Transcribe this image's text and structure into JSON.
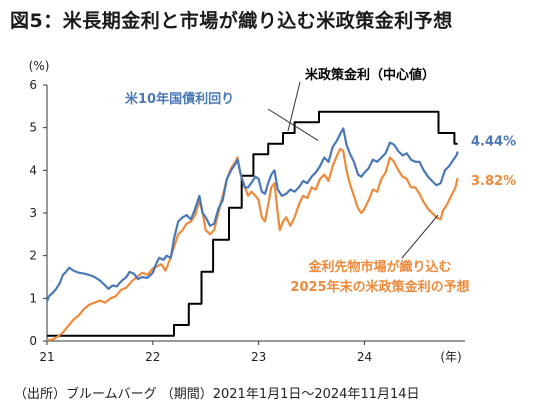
{
  "title": "図5：米長期金利と市場が織り込む米政策金利予想",
  "source": "（出所）ブルームバーグ （期間）2021年1月1日～2024年11月14日",
  "colors": {
    "treasury": "#4a78b7",
    "market": "#ee8a3a",
    "policy": "#000000"
  },
  "chart_data": {
    "type": "line",
    "title": "図5：米長期金利と市場が織り込む米政策金利予想",
    "ylabel": "(%)",
    "xlabel": "(年)",
    "ylim": [
      0,
      6
    ],
    "xlim": [
      2021.0,
      2024.95
    ],
    "y_ticks": [
      "0",
      "1",
      "2",
      "3",
      "4",
      "5",
      "6"
    ],
    "x_ticks": [
      {
        "label": "21",
        "value": 2021.0
      },
      {
        "label": "22",
        "value": 2022.0
      },
      {
        "label": "23",
        "value": 2023.0
      },
      {
        "label": "24",
        "value": 2024.0
      }
    ],
    "grid": false,
    "series": [
      {
        "name": "米10年国債利回り",
        "color": "#4a78b7",
        "end_label": "4.44%",
        "points": [
          [
            2021.0,
            0.93
          ],
          [
            2021.02,
            1.05
          ],
          [
            2021.05,
            1.12
          ],
          [
            2021.08,
            1.2
          ],
          [
            2021.12,
            1.35
          ],
          [
            2021.15,
            1.55
          ],
          [
            2021.18,
            1.62
          ],
          [
            2021.21,
            1.72
          ],
          [
            2021.25,
            1.65
          ],
          [
            2021.3,
            1.6
          ],
          [
            2021.35,
            1.58
          ],
          [
            2021.4,
            1.55
          ],
          [
            2021.45,
            1.5
          ],
          [
            2021.5,
            1.42
          ],
          [
            2021.55,
            1.3
          ],
          [
            2021.58,
            1.22
          ],
          [
            2021.62,
            1.3
          ],
          [
            2021.66,
            1.28
          ],
          [
            2021.7,
            1.4
          ],
          [
            2021.75,
            1.5
          ],
          [
            2021.78,
            1.62
          ],
          [
            2021.82,
            1.58
          ],
          [
            2021.86,
            1.45
          ],
          [
            2021.9,
            1.5
          ],
          [
            2021.95,
            1.48
          ],
          [
            2022.0,
            1.6
          ],
          [
            2022.03,
            1.8
          ],
          [
            2022.06,
            1.95
          ],
          [
            2022.1,
            1.9
          ],
          [
            2022.13,
            2.0
          ],
          [
            2022.17,
            1.95
          ],
          [
            2022.2,
            2.4
          ],
          [
            2022.24,
            2.8
          ],
          [
            2022.28,
            2.9
          ],
          [
            2022.32,
            2.95
          ],
          [
            2022.36,
            2.85
          ],
          [
            2022.4,
            3.1
          ],
          [
            2022.44,
            3.4
          ],
          [
            2022.47,
            3.0
          ],
          [
            2022.5,
            2.9
          ],
          [
            2022.54,
            2.7
          ],
          [
            2022.58,
            2.75
          ],
          [
            2022.62,
            3.1
          ],
          [
            2022.66,
            3.3
          ],
          [
            2022.7,
            3.8
          ],
          [
            2022.74,
            4.0
          ],
          [
            2022.78,
            4.15
          ],
          [
            2022.8,
            4.25
          ],
          [
            2022.83,
            3.9
          ],
          [
            2022.87,
            3.6
          ],
          [
            2022.9,
            3.6
          ],
          [
            2022.93,
            3.7
          ],
          [
            2022.97,
            3.85
          ],
          [
            2023.0,
            3.8
          ],
          [
            2023.03,
            3.5
          ],
          [
            2023.06,
            3.45
          ],
          [
            2023.09,
            3.7
          ],
          [
            2023.12,
            3.9
          ],
          [
            2023.15,
            4.0
          ],
          [
            2023.18,
            3.55
          ],
          [
            2023.22,
            3.4
          ],
          [
            2023.26,
            3.45
          ],
          [
            2023.3,
            3.55
          ],
          [
            2023.34,
            3.5
          ],
          [
            2023.38,
            3.6
          ],
          [
            2023.42,
            3.75
          ],
          [
            2023.46,
            3.7
          ],
          [
            2023.5,
            3.85
          ],
          [
            2023.54,
            3.95
          ],
          [
            2023.58,
            4.1
          ],
          [
            2023.62,
            4.3
          ],
          [
            2023.66,
            4.2
          ],
          [
            2023.7,
            4.55
          ],
          [
            2023.74,
            4.7
          ],
          [
            2023.77,
            4.85
          ],
          [
            2023.8,
            4.98
          ],
          [
            2023.83,
            4.6
          ],
          [
            2023.86,
            4.4
          ],
          [
            2023.9,
            4.2
          ],
          [
            2023.94,
            3.9
          ],
          [
            2023.97,
            3.85
          ],
          [
            2024.0,
            3.95
          ],
          [
            2024.04,
            4.05
          ],
          [
            2024.08,
            4.25
          ],
          [
            2024.12,
            4.2
          ],
          [
            2024.16,
            4.3
          ],
          [
            2024.2,
            4.4
          ],
          [
            2024.24,
            4.65
          ],
          [
            2024.28,
            4.6
          ],
          [
            2024.32,
            4.45
          ],
          [
            2024.36,
            4.35
          ],
          [
            2024.4,
            4.4
          ],
          [
            2024.44,
            4.25
          ],
          [
            2024.48,
            4.2
          ],
          [
            2024.52,
            4.2
          ],
          [
            2024.56,
            4.0
          ],
          [
            2024.6,
            3.85
          ],
          [
            2024.64,
            3.75
          ],
          [
            2024.68,
            3.65
          ],
          [
            2024.72,
            3.7
          ],
          [
            2024.76,
            4.0
          ],
          [
            2024.8,
            4.1
          ],
          [
            2024.84,
            4.25
          ],
          [
            2024.87,
            4.35
          ],
          [
            2024.88,
            4.44
          ]
        ]
      },
      {
        "name": "金利先物市場が織り込む2025年末の米政策金利の予想",
        "color": "#ee8a3a",
        "end_label": "3.82%",
        "points": [
          [
            2021.0,
            0.02
          ],
          [
            2021.05,
            0.03
          ],
          [
            2021.1,
            0.1
          ],
          [
            2021.15,
            0.2
          ],
          [
            2021.2,
            0.35
          ],
          [
            2021.25,
            0.5
          ],
          [
            2021.3,
            0.6
          ],
          [
            2021.35,
            0.75
          ],
          [
            2021.4,
            0.85
          ],
          [
            2021.45,
            0.9
          ],
          [
            2021.5,
            0.95
          ],
          [
            2021.55,
            0.9
          ],
          [
            2021.6,
            1.0
          ],
          [
            2021.65,
            1.05
          ],
          [
            2021.7,
            1.2
          ],
          [
            2021.75,
            1.25
          ],
          [
            2021.8,
            1.4
          ],
          [
            2021.85,
            1.5
          ],
          [
            2021.9,
            1.6
          ],
          [
            2021.95,
            1.55
          ],
          [
            2022.0,
            1.7
          ],
          [
            2022.04,
            1.75
          ],
          [
            2022.08,
            1.8
          ],
          [
            2022.12,
            1.65
          ],
          [
            2022.16,
            1.9
          ],
          [
            2022.2,
            2.2
          ],
          [
            2022.24,
            2.5
          ],
          [
            2022.28,
            2.6
          ],
          [
            2022.32,
            2.75
          ],
          [
            2022.36,
            2.8
          ],
          [
            2022.4,
            2.95
          ],
          [
            2022.44,
            3.3
          ],
          [
            2022.47,
            3.0
          ],
          [
            2022.5,
            2.6
          ],
          [
            2022.54,
            2.5
          ],
          [
            2022.58,
            2.6
          ],
          [
            2022.62,
            3.0
          ],
          [
            2022.66,
            3.4
          ],
          [
            2022.7,
            3.8
          ],
          [
            2022.74,
            4.05
          ],
          [
            2022.78,
            4.2
          ],
          [
            2022.8,
            4.3
          ],
          [
            2022.83,
            3.9
          ],
          [
            2022.87,
            3.6
          ],
          [
            2022.9,
            3.4
          ],
          [
            2022.93,
            3.5
          ],
          [
            2022.97,
            3.4
          ],
          [
            2023.0,
            3.3
          ],
          [
            2023.03,
            2.9
          ],
          [
            2023.06,
            2.8
          ],
          [
            2023.09,
            3.2
          ],
          [
            2023.12,
            3.6
          ],
          [
            2023.15,
            3.7
          ],
          [
            2023.18,
            3.0
          ],
          [
            2023.2,
            2.6
          ],
          [
            2023.23,
            2.8
          ],
          [
            2023.26,
            2.9
          ],
          [
            2023.3,
            2.7
          ],
          [
            2023.34,
            2.9
          ],
          [
            2023.38,
            3.2
          ],
          [
            2023.42,
            3.4
          ],
          [
            2023.46,
            3.35
          ],
          [
            2023.5,
            3.6
          ],
          [
            2023.54,
            3.55
          ],
          [
            2023.58,
            3.8
          ],
          [
            2023.62,
            3.9
          ],
          [
            2023.66,
            3.75
          ],
          [
            2023.7,
            4.1
          ],
          [
            2023.74,
            4.35
          ],
          [
            2023.77,
            4.5
          ],
          [
            2023.8,
            4.45
          ],
          [
            2023.83,
            4.0
          ],
          [
            2023.86,
            3.7
          ],
          [
            2023.9,
            3.4
          ],
          [
            2023.94,
            3.1
          ],
          [
            2023.97,
            3.0
          ],
          [
            2024.0,
            3.1
          ],
          [
            2024.04,
            3.3
          ],
          [
            2024.08,
            3.55
          ],
          [
            2024.12,
            3.5
          ],
          [
            2024.16,
            3.8
          ],
          [
            2024.2,
            3.95
          ],
          [
            2024.24,
            4.3
          ],
          [
            2024.28,
            4.2
          ],
          [
            2024.32,
            4.0
          ],
          [
            2024.36,
            3.85
          ],
          [
            2024.4,
            3.8
          ],
          [
            2024.44,
            3.6
          ],
          [
            2024.48,
            3.6
          ],
          [
            2024.52,
            3.45
          ],
          [
            2024.56,
            3.25
          ],
          [
            2024.6,
            3.1
          ],
          [
            2024.64,
            3.0
          ],
          [
            2024.68,
            2.9
          ],
          [
            2024.72,
            2.85
          ],
          [
            2024.74,
            3.05
          ],
          [
            2024.78,
            3.2
          ],
          [
            2024.82,
            3.4
          ],
          [
            2024.86,
            3.6
          ],
          [
            2024.88,
            3.82
          ]
        ]
      },
      {
        "name": "米政策金利（中心値）",
        "color": "#000000",
        "step": true,
        "points": [
          [
            2021.0,
            0.125
          ],
          [
            2022.2,
            0.125
          ],
          [
            2022.2,
            0.375
          ],
          [
            2022.34,
            0.375
          ],
          [
            2022.34,
            0.875
          ],
          [
            2022.46,
            0.875
          ],
          [
            2022.46,
            1.625
          ],
          [
            2022.57,
            1.625
          ],
          [
            2022.57,
            2.375
          ],
          [
            2022.72,
            2.375
          ],
          [
            2022.72,
            3.125
          ],
          [
            2022.84,
            3.125
          ],
          [
            2022.84,
            3.875
          ],
          [
            2022.95,
            3.875
          ],
          [
            2022.95,
            4.375
          ],
          [
            2023.09,
            4.375
          ],
          [
            2023.09,
            4.625
          ],
          [
            2023.23,
            4.625
          ],
          [
            2023.23,
            4.875
          ],
          [
            2023.34,
            4.875
          ],
          [
            2023.34,
            5.125
          ],
          [
            2023.57,
            5.125
          ],
          [
            2023.57,
            5.375
          ],
          [
            2024.7,
            5.375
          ],
          [
            2024.7,
            4.875
          ],
          [
            2024.85,
            4.875
          ],
          [
            2024.85,
            4.625
          ],
          [
            2024.88,
            4.625
          ]
        ]
      }
    ],
    "annotations": [
      {
        "text": "米10年国債利回り",
        "color": "#4a78b7"
      },
      {
        "text": "米政策金利（中心値）",
        "color": "#000000"
      },
      {
        "text": "金利先物市場が織り込む",
        "color": "#ee8a3a"
      },
      {
        "text": "2025年末の米政策金利の予想",
        "color": "#ee8a3a"
      }
    ]
  }
}
